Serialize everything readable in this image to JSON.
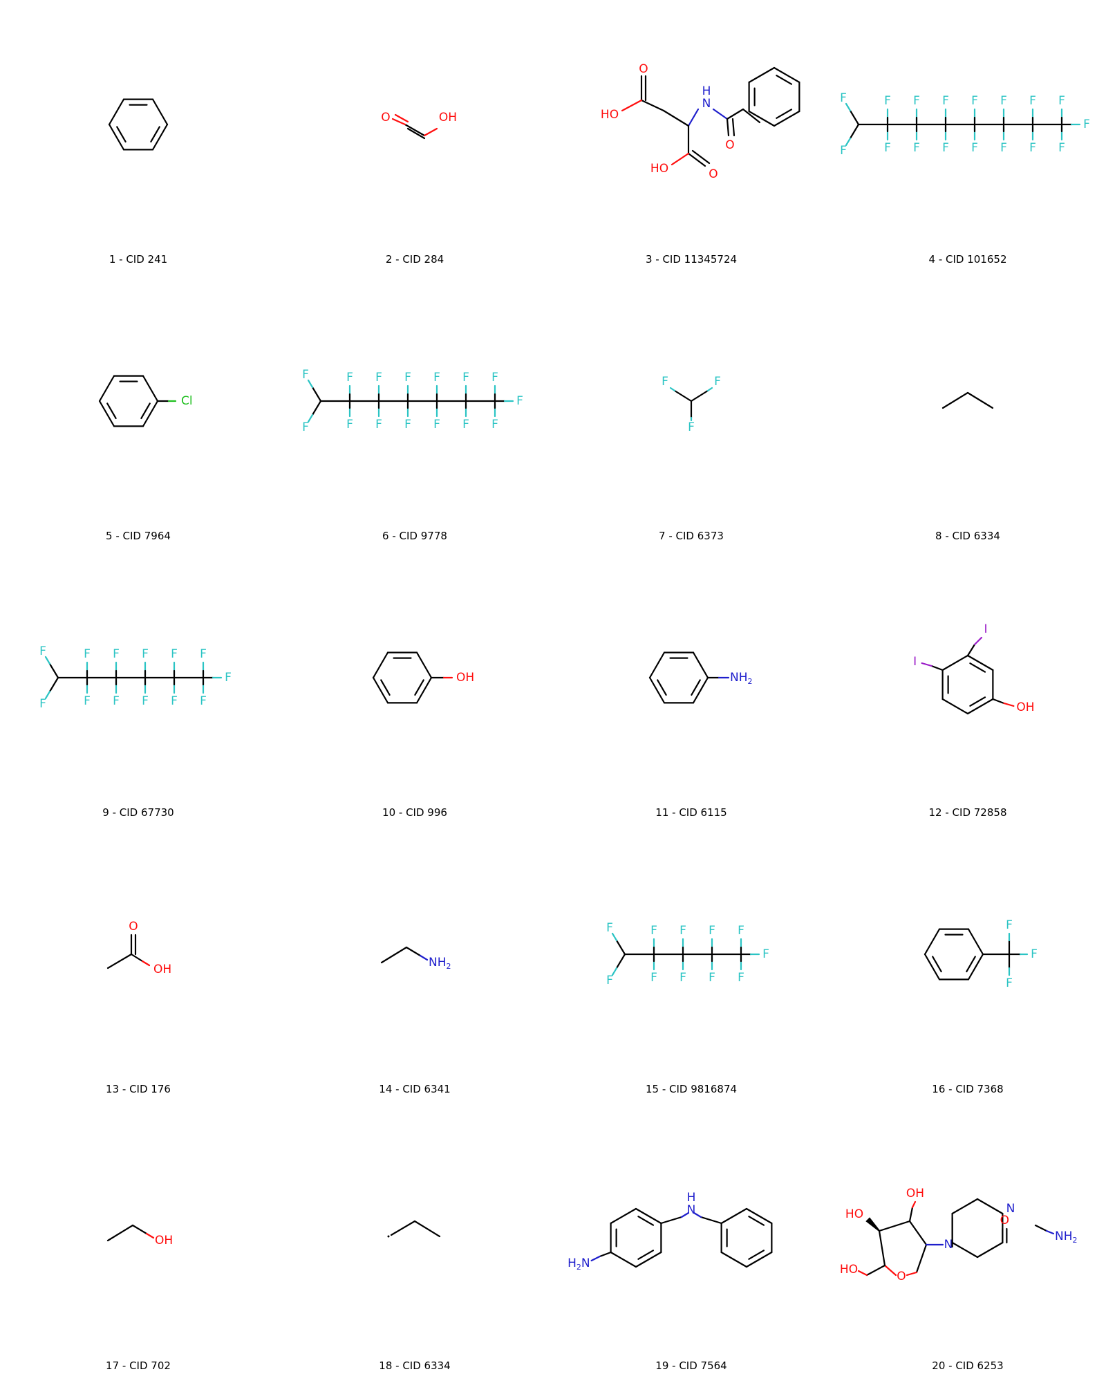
{
  "colors": {
    "O": "#ff0d0d",
    "N": "#1e1ecc",
    "F": "#2bc4c4",
    "Cl": "#1fbf1f",
    "I": "#9a1cc8",
    "C": "#000000"
  },
  "molecules": [
    {
      "legend": "1 - CID 241"
    },
    {
      "legend": "2 - CID 284"
    },
    {
      "legend": "3 - CID 11345724"
    },
    {
      "legend": "4 - CID 101652"
    },
    {
      "legend": "5 - CID 7964"
    },
    {
      "legend": "6 - CID 9778"
    },
    {
      "legend": "7 - CID 6373"
    },
    {
      "legend": "8 - CID 6334"
    },
    {
      "legend": "9 - CID 67730"
    },
    {
      "legend": "10 - CID 996"
    },
    {
      "legend": "11 - CID 6115"
    },
    {
      "legend": "12 - CID 72858"
    },
    {
      "legend": "13 - CID 176"
    },
    {
      "legend": "14 - CID 6341"
    },
    {
      "legend": "15 - CID 9816874"
    },
    {
      "legend": "16 - CID 7368"
    },
    {
      "legend": "17 - CID 702"
    },
    {
      "legend": "18 - CID 6334"
    },
    {
      "legend": "19 - CID 7564"
    },
    {
      "legend": "20 - CID 6253"
    }
  ],
  "atom_labels": {
    "OH": "OH",
    "HO": "HO",
    "O": "O",
    "NH2": "NH",
    "H2N": "H",
    "N": "N",
    "NH": "N",
    "H": "H",
    "F": "F",
    "Cl": "Cl",
    "I": "I",
    "sub2": "2"
  }
}
